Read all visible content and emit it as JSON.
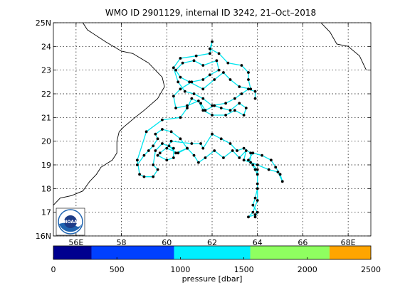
{
  "chart_data": {
    "type": "map-track",
    "title": "WMO ID 2901129, internal ID 3242, 21–Oct–2018",
    "xlim": [
      55,
      69
    ],
    "ylim": [
      16,
      25
    ],
    "xticks": [
      56,
      58,
      60,
      62,
      64,
      66,
      68
    ],
    "xtick_labels": [
      "56E",
      "58",
      "60",
      "62",
      "64",
      "66",
      "68E"
    ],
    "yticks": [
      16,
      17,
      18,
      19,
      20,
      21,
      22,
      23,
      24,
      25
    ],
    "ytick_labels": [
      "16N",
      "17",
      "18",
      "19",
      "20",
      "21",
      "22",
      "23",
      "24",
      "25N"
    ],
    "grid": true,
    "coastline_lon_lat": [
      [
        56.3,
        25
      ],
      [
        56.5,
        24.7
      ],
      [
        57.3,
        24.2
      ],
      [
        58.0,
        23.8
      ],
      [
        58.5,
        23.7
      ],
      [
        59.2,
        23.3
      ],
      [
        59.8,
        22.7
      ],
      [
        59.9,
        22.3
      ],
      [
        59.6,
        21.8
      ],
      [
        59.0,
        21.3
      ],
      [
        58.6,
        21.0
      ],
      [
        58.1,
        20.6
      ],
      [
        57.9,
        20.4
      ],
      [
        57.8,
        20.0
      ],
      [
        57.8,
        19.5
      ],
      [
        57.6,
        19.2
      ],
      [
        57.1,
        18.9
      ],
      [
        56.9,
        18.6
      ],
      [
        56.6,
        18.3
      ],
      [
        56.3,
        17.9
      ],
      [
        55.8,
        17.7
      ],
      [
        55.3,
        17.6
      ],
      [
        55,
        17.3
      ]
    ],
    "coastline2_lon_lat": [
      [
        66.8,
        25
      ],
      [
        67.2,
        24.6
      ],
      [
        67.5,
        24.1
      ],
      [
        68.0,
        24.0
      ],
      [
        68.5,
        23.6
      ],
      [
        68.8,
        23.0
      ]
    ],
    "track_lon_lat": [
      [
        58.7,
        19.0
      ],
      [
        59.0,
        19.4
      ],
      [
        59.2,
        19.6
      ],
      [
        59.4,
        19.8
      ],
      [
        59.6,
        20.1
      ],
      [
        59.5,
        20.3
      ],
      [
        59.8,
        20.5
      ],
      [
        60.2,
        20.4
      ],
      [
        60.6,
        20.1
      ],
      [
        60.9,
        19.7
      ],
      [
        60.5,
        19.5
      ],
      [
        60.0,
        19.7
      ],
      [
        60.2,
        20.0
      ],
      [
        61.1,
        19.9
      ],
      [
        61.5,
        19.9
      ],
      [
        61.6,
        19.7
      ],
      [
        62.0,
        20.3
      ],
      [
        62.4,
        20.1
      ],
      [
        62.8,
        19.9
      ],
      [
        63.1,
        19.6
      ],
      [
        63.4,
        19.7
      ],
      [
        63.7,
        19.5
      ],
      [
        63.7,
        19.1
      ],
      [
        63.9,
        18.8
      ],
      [
        64.0,
        18.6
      ],
      [
        64.0,
        18.0
      ],
      [
        63.9,
        17.6
      ],
      [
        63.8,
        17.3
      ],
      [
        64.0,
        17.0
      ],
      [
        63.9,
        16.8
      ],
      [
        63.9,
        16.9
      ],
      [
        63.6,
        16.8
      ],
      [
        63.8,
        17.0
      ],
      [
        64.0,
        17.5
      ],
      [
        64.0,
        18.2
      ],
      [
        64.0,
        18.8
      ],
      [
        63.8,
        19.0
      ],
      [
        63.6,
        19.2
      ],
      [
        63.8,
        19.5
      ],
      [
        64.2,
        19.4
      ],
      [
        64.6,
        19.2
      ],
      [
        64.8,
        18.9
      ],
      [
        65.0,
        18.6
      ],
      [
        65.1,
        18.3
      ],
      [
        64.9,
        18.7
      ],
      [
        64.5,
        18.8
      ],
      [
        64.0,
        19.0
      ],
      [
        63.4,
        19.2
      ],
      [
        63.5,
        19.6
      ],
      [
        63.2,
        19.3
      ],
      [
        62.9,
        19.6
      ],
      [
        62.5,
        19.3
      ],
      [
        62.1,
        19.6
      ],
      [
        61.7,
        19.3
      ],
      [
        61.4,
        19.1
      ],
      [
        61.2,
        19.4
      ],
      [
        60.9,
        19.7
      ],
      [
        60.4,
        19.5
      ],
      [
        60.1,
        19.8
      ],
      [
        59.7,
        19.5
      ],
      [
        59.6,
        19.4
      ],
      [
        60.0,
        19.2
      ],
      [
        60.3,
        19.3
      ],
      [
        60.3,
        19.7
      ],
      [
        59.8,
        19.9
      ],
      [
        59.5,
        19.6
      ],
      [
        59.4,
        19.0
      ],
      [
        59.6,
        18.8
      ],
      [
        59.4,
        18.5
      ],
      [
        59.0,
        18.5
      ],
      [
        58.8,
        18.6
      ],
      [
        58.7,
        19.2
      ],
      [
        59.1,
        20.4
      ],
      [
        59.8,
        20.9
      ],
      [
        60.6,
        21.0
      ],
      [
        60.9,
        21.4
      ],
      [
        61.1,
        21.8
      ],
      [
        61.5,
        21.6
      ],
      [
        61.7,
        21.3
      ],
      [
        62.1,
        21.5
      ],
      [
        62.4,
        21.4
      ],
      [
        62.8,
        21.3
      ],
      [
        63.2,
        21.6
      ],
      [
        63.5,
        21.4
      ],
      [
        63.4,
        21.1
      ],
      [
        63.0,
        21.3
      ],
      [
        62.6,
        21.1
      ],
      [
        62.0,
        21.1
      ],
      [
        61.6,
        21.3
      ],
      [
        61.4,
        21.7
      ],
      [
        60.9,
        21.5
      ],
      [
        60.4,
        21.4
      ],
      [
        60.3,
        21.9
      ],
      [
        60.6,
        22.2
      ],
      [
        61.1,
        22.5
      ],
      [
        61.6,
        22.6
      ],
      [
        61.9,
        22.8
      ],
      [
        62.3,
        23.0
      ],
      [
        62.2,
        23.4
      ],
      [
        61.6,
        23.2
      ],
      [
        61.2,
        23.4
      ],
      [
        60.7,
        23.3
      ],
      [
        60.4,
        23.0
      ],
      [
        60.6,
        22.7
      ],
      [
        61.0,
        22.5
      ],
      [
        61.6,
        22.2
      ],
      [
        62.1,
        22.6
      ],
      [
        62.5,
        22.9
      ],
      [
        62.8,
        22.6
      ],
      [
        63.2,
        22.3
      ],
      [
        63.7,
        22.2
      ],
      [
        63.6,
        22.6
      ],
      [
        63.6,
        22.9
      ],
      [
        63.3,
        23.2
      ],
      [
        62.7,
        23.3
      ],
      [
        62.3,
        23.7
      ],
      [
        61.9,
        23.9
      ],
      [
        62.0,
        24.2
      ],
      [
        61.9,
        23.7
      ],
      [
        61.3,
        23.6
      ],
      [
        60.6,
        23.5
      ],
      [
        60.3,
        23.1
      ],
      [
        60.5,
        22.5
      ],
      [
        60.8,
        22.1
      ],
      [
        61.2,
        22.0
      ],
      [
        61.6,
        21.8
      ],
      [
        62.0,
        21.5
      ],
      [
        62.6,
        21.6
      ],
      [
        63.0,
        21.8
      ],
      [
        63.3,
        22.0
      ],
      [
        63.6,
        22.2
      ],
      [
        63.9,
        22.1
      ],
      [
        63.9,
        21.8
      ]
    ],
    "colorbar": {
      "label": "pressure [dbar]",
      "ticks": [
        0,
        500,
        1000,
        1500,
        2000,
        2500
      ],
      "range": [
        0,
        2500
      ],
      "bins": [
        {
          "from": 0,
          "to": 300,
          "color": "#00008f"
        },
        {
          "from": 300,
          "to": 950,
          "color": "#0040ff"
        },
        {
          "from": 950,
          "to": 1550,
          "color": "#00efff"
        },
        {
          "from": 1550,
          "to": 2175,
          "color": "#8fff60"
        },
        {
          "from": 2175,
          "to": 2500,
          "color": "#ffa500"
        }
      ]
    },
    "colors": {
      "track": "#00e5ee",
      "dots": "#000000",
      "coast": "#000000",
      "grid": "#000000"
    },
    "logo_text": "NOAA"
  }
}
